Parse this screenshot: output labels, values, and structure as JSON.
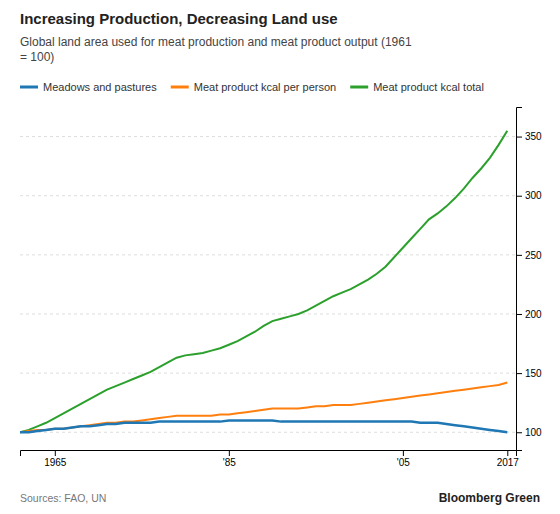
{
  "chart_data": {
    "type": "line",
    "title": "Increasing Production, Decreasing Land use",
    "subtitle": "Global land area used for meat production and meat product output (1961\n= 100)",
    "annotations": [
      "Sources: FAO, UN",
      "Bloomberg Green"
    ],
    "x": [
      1961,
      1962,
      1963,
      1964,
      1965,
      1966,
      1967,
      1968,
      1969,
      1970,
      1971,
      1972,
      1973,
      1974,
      1975,
      1976,
      1977,
      1978,
      1979,
      1980,
      1981,
      1982,
      1983,
      1984,
      1985,
      1986,
      1987,
      1988,
      1989,
      1990,
      1991,
      1992,
      1993,
      1994,
      1995,
      1996,
      1997,
      1998,
      1999,
      2000,
      2001,
      2002,
      2003,
      2004,
      2005,
      2006,
      2007,
      2008,
      2009,
      2010,
      2011,
      2012,
      2013,
      2014,
      2015,
      2016,
      2017
    ],
    "series": [
      {
        "name": "Meadows and pastures",
        "values": [
          100,
          100,
          101,
          102,
          103,
          103,
          104,
          105,
          105,
          106,
          107,
          107,
          108,
          108,
          108,
          108,
          109,
          109,
          109,
          109,
          109,
          109,
          109,
          109,
          110,
          110,
          110,
          110,
          110,
          110,
          109,
          109,
          109,
          109,
          109,
          109,
          109,
          109,
          109,
          109,
          109,
          109,
          109,
          109,
          109,
          109,
          108,
          108,
          108,
          107,
          106,
          105,
          104,
          103,
          102,
          101,
          100
        ]
      },
      {
        "name": "Meat product kcal per person",
        "values": [
          100,
          101,
          102,
          102,
          103,
          103,
          104,
          105,
          106,
          107,
          108,
          108,
          109,
          109,
          110,
          111,
          112,
          113,
          114,
          114,
          114,
          114,
          114,
          115,
          115,
          116,
          117,
          118,
          119,
          120,
          120,
          120,
          120,
          121,
          122,
          122,
          123,
          123,
          123,
          124,
          125,
          126,
          127,
          128,
          129,
          130,
          131,
          132,
          133,
          134,
          135,
          136,
          137,
          138,
          139,
          140,
          142
        ]
      },
      {
        "name": "Meat product kcal total",
        "values": [
          100,
          102,
          105,
          108,
          112,
          116,
          120,
          124,
          128,
          132,
          136,
          139,
          142,
          145,
          148,
          151,
          155,
          159,
          163,
          165,
          166,
          167,
          169,
          171,
          174,
          177,
          181,
          185,
          190,
          194,
          196,
          198,
          200,
          203,
          207,
          211,
          215,
          218,
          221,
          225,
          229,
          234,
          240,
          248,
          256,
          264,
          272,
          280,
          285,
          291,
          298,
          306,
          315,
          323,
          332,
          343,
          355
        ]
      }
    ],
    "xlim": [
      1961,
      2018
    ],
    "xticks": [
      1965,
      {
        "value": 1985,
        "label": "'85"
      },
      {
        "value": 2005,
        "label": "'05"
      },
      2017
    ],
    "ylim": [
      85,
      375
    ],
    "yticks": [
      100,
      150,
      200,
      250,
      300,
      350
    ],
    "grid": true,
    "legend": "upper left"
  }
}
